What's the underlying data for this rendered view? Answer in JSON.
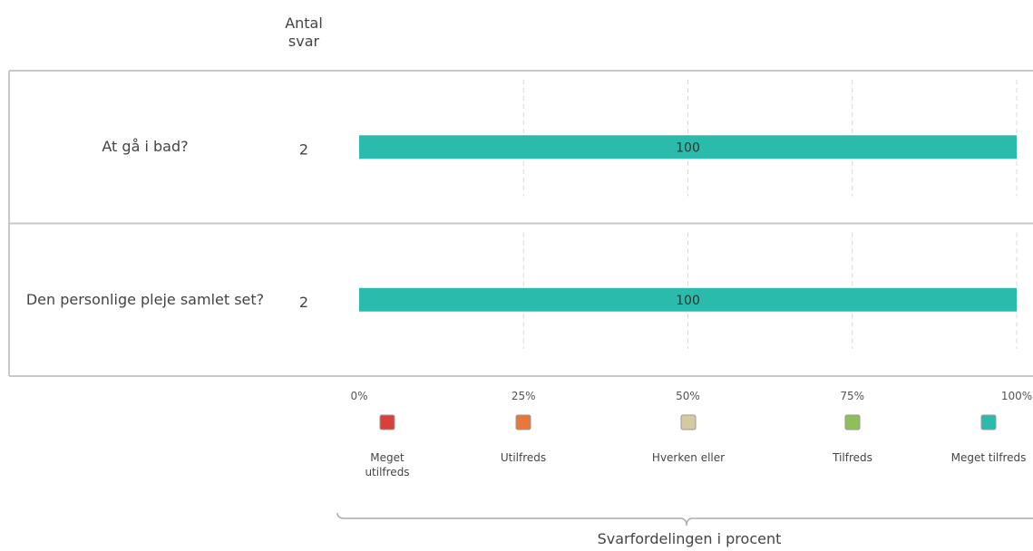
{
  "chart_data": {
    "type": "bar",
    "orientation": "horizontal",
    "stacked": true,
    "count_header": "Antal svar",
    "categories": [
      "At gå i bad?",
      "Den personlige pleje samlet set?"
    ],
    "counts": [
      2,
      2
    ],
    "series": [
      {
        "name": "Meget utilfreds",
        "color": "#d9403a",
        "values": [
          0,
          0
        ]
      },
      {
        "name": "Utilfreds",
        "color": "#e8783a",
        "values": [
          0,
          0
        ]
      },
      {
        "name": "Hverken eller",
        "color": "#d6c9a1",
        "values": [
          0,
          0
        ]
      },
      {
        "name": "Tilfreds",
        "color": "#8dc05a",
        "values": [
          0,
          0
        ]
      },
      {
        "name": "Meget tilfreds",
        "color": "#2bbbad",
        "values": [
          100,
          100
        ]
      }
    ],
    "xlim": [
      0,
      100
    ],
    "xticks": [
      {
        "value": 0,
        "label": "0%"
      },
      {
        "value": 25,
        "label": "25%"
      },
      {
        "value": 50,
        "label": "50%"
      },
      {
        "value": 75,
        "label": "75%"
      },
      {
        "value": 100,
        "label": "100%"
      }
    ],
    "grid": true,
    "xlabel": "Svarfordelingen i procent"
  }
}
